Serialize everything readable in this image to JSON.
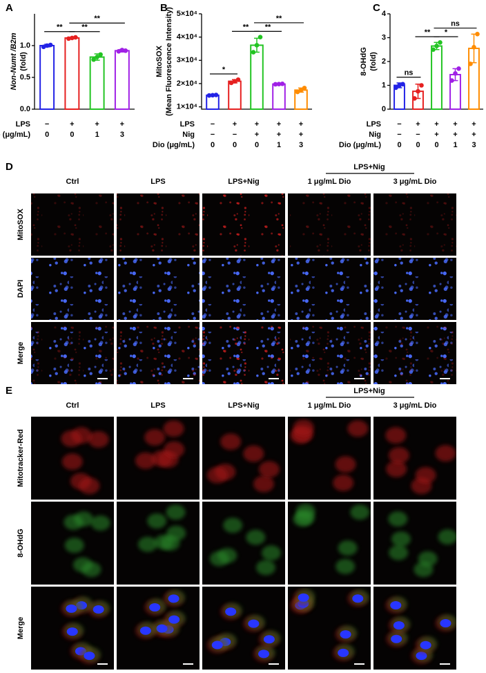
{
  "chart_data": [
    {
      "type": "bar",
      "panel": "A",
      "ylabel": [
        "Non-Numt /B2m",
        "(fold)"
      ],
      "colors": [
        "#2222e6",
        "#e62020",
        "#22c422",
        "#a020e6"
      ],
      "values": [
        1.0,
        1.12,
        0.82,
        0.92
      ],
      "errors": [
        0.02,
        0.01,
        0.05,
        0.02
      ],
      "points": [
        [
          0.98,
          1.0,
          1.01
        ],
        [
          1.11,
          1.12,
          1.13
        ],
        [
          0.78,
          0.82,
          0.86
        ],
        [
          0.91,
          0.93,
          0.92
        ]
      ],
      "ylim": [
        0,
        1.5
      ],
      "yticks": [
        {
          "value": 0,
          "label": "0.0"
        },
        {
          "value": 0.5,
          "label": "0.5"
        },
        {
          "value": 1,
          "label": "1.0"
        }
      ],
      "conditions": [
        {
          "label": "LPS",
          "values": [
            "−",
            "+",
            "+",
            "+"
          ]
        },
        {
          "label": "Dio (μg/mL)",
          "values": [
            "0",
            "0",
            "1",
            "3"
          ]
        }
      ],
      "significance": [
        {
          "pair": [
            0,
            1
          ],
          "label": "**"
        },
        {
          "pair": [
            1,
            2
          ],
          "label": "**"
        },
        {
          "pair": [
            1,
            3
          ],
          "label": "**"
        }
      ]
    },
    {
      "type": "bar",
      "panel": "B",
      "ylabel": [
        "MitoSOX",
        "(Mean Fluorescence Intensity)"
      ],
      "colors": [
        "#2222e6",
        "#e62020",
        "#22c422",
        "#a020e6",
        "#ff8c00"
      ],
      "values": [
        15000,
        21000,
        36500,
        19800,
        17200
      ],
      "errors": [
        200,
        700,
        3000,
        200,
        900
      ],
      "points": [
        [
          14900,
          15000,
          15100
        ],
        [
          20300,
          21000,
          21700
        ],
        [
          33500,
          36500,
          40000
        ],
        [
          19700,
          19800,
          19900
        ],
        [
          16400,
          17200,
          18100
        ]
      ],
      "ylim": [
        9000,
        50000
      ],
      "yticks": [
        {
          "value": 10000,
          "label": "1×10⁴"
        },
        {
          "value": 20000,
          "label": "2×10⁴"
        },
        {
          "value": 30000,
          "label": "3×10⁴"
        },
        {
          "value": 40000,
          "label": "4×10⁴"
        },
        {
          "value": 50000,
          "label": "5×10⁴"
        }
      ],
      "conditions": [
        {
          "label": "LPS",
          "values": [
            "−",
            "+",
            "+",
            "+",
            "+"
          ]
        },
        {
          "label": "Nig",
          "values": [
            "−",
            "−",
            "+",
            "+",
            "+"
          ]
        },
        {
          "label": "Dio (μg/mL)",
          "values": [
            "0",
            "0",
            "0",
            "1",
            "3"
          ]
        }
      ],
      "significance": [
        {
          "pair": [
            0,
            1
          ],
          "label": "*"
        },
        {
          "pair": [
            1,
            2
          ],
          "label": "**"
        },
        {
          "pair": [
            2,
            3
          ],
          "label": "**"
        },
        {
          "pair": [
            2,
            4
          ],
          "label": "**"
        }
      ]
    },
    {
      "type": "bar",
      "panel": "C",
      "ylabel": [
        "8-OHdG",
        "(fold)"
      ],
      "colors": [
        "#2222e6",
        "#e62020",
        "#22c422",
        "#a020e6",
        "#ff8c00"
      ],
      "values": [
        1.0,
        0.75,
        2.65,
        1.45,
        2.55
      ],
      "errors": [
        0.1,
        0.3,
        0.15,
        0.25,
        0.6
      ],
      "points": [
        [
          0.9,
          1.0,
          1.05
        ],
        [
          0.45,
          0.75,
          1.0
        ],
        [
          2.5,
          2.65,
          2.8
        ],
        [
          1.2,
          1.5,
          1.7
        ],
        [
          1.9,
          2.6,
          3.15
        ]
      ],
      "ylim": [
        0,
        4
      ],
      "yticks": [
        0,
        1,
        2,
        3,
        4
      ],
      "conditions": [
        {
          "label": "LPS",
          "values": [
            "−",
            "+",
            "+",
            "+",
            "+"
          ]
        },
        {
          "label": "Nig",
          "values": [
            "−",
            "−",
            "+",
            "+",
            "+"
          ]
        },
        {
          "label": "Dio (μg/mL)",
          "values": [
            "0",
            "0",
            "0",
            "1",
            "3"
          ]
        }
      ],
      "significance": [
        {
          "pair": [
            0,
            1
          ],
          "label": "ns"
        },
        {
          "pair": [
            1,
            2
          ],
          "label": "**"
        },
        {
          "pair": [
            2,
            3
          ],
          "label": "*"
        },
        {
          "pair": [
            2,
            4
          ],
          "label": "ns"
        }
      ]
    }
  ],
  "panels": [
    {
      "panel": "D",
      "group": "LPS+Nig",
      "columns": [
        "Ctrl",
        "LPS",
        "LPS+Nig",
        "1 μg/mL Dio",
        "3 μg/mL Dio"
      ],
      "rows": [
        "MitoSOX",
        "DAPI",
        "Merge"
      ]
    },
    {
      "panel": "E",
      "group": "LPS+Nig",
      "columns": [
        "Ctrl",
        "LPS",
        "LPS+Nig",
        "1 μg/mL Dio",
        "3 μg/mL Dio"
      ],
      "rows": [
        "Mitotracker-Red",
        "8-OHdG",
        "Merge"
      ]
    }
  ]
}
